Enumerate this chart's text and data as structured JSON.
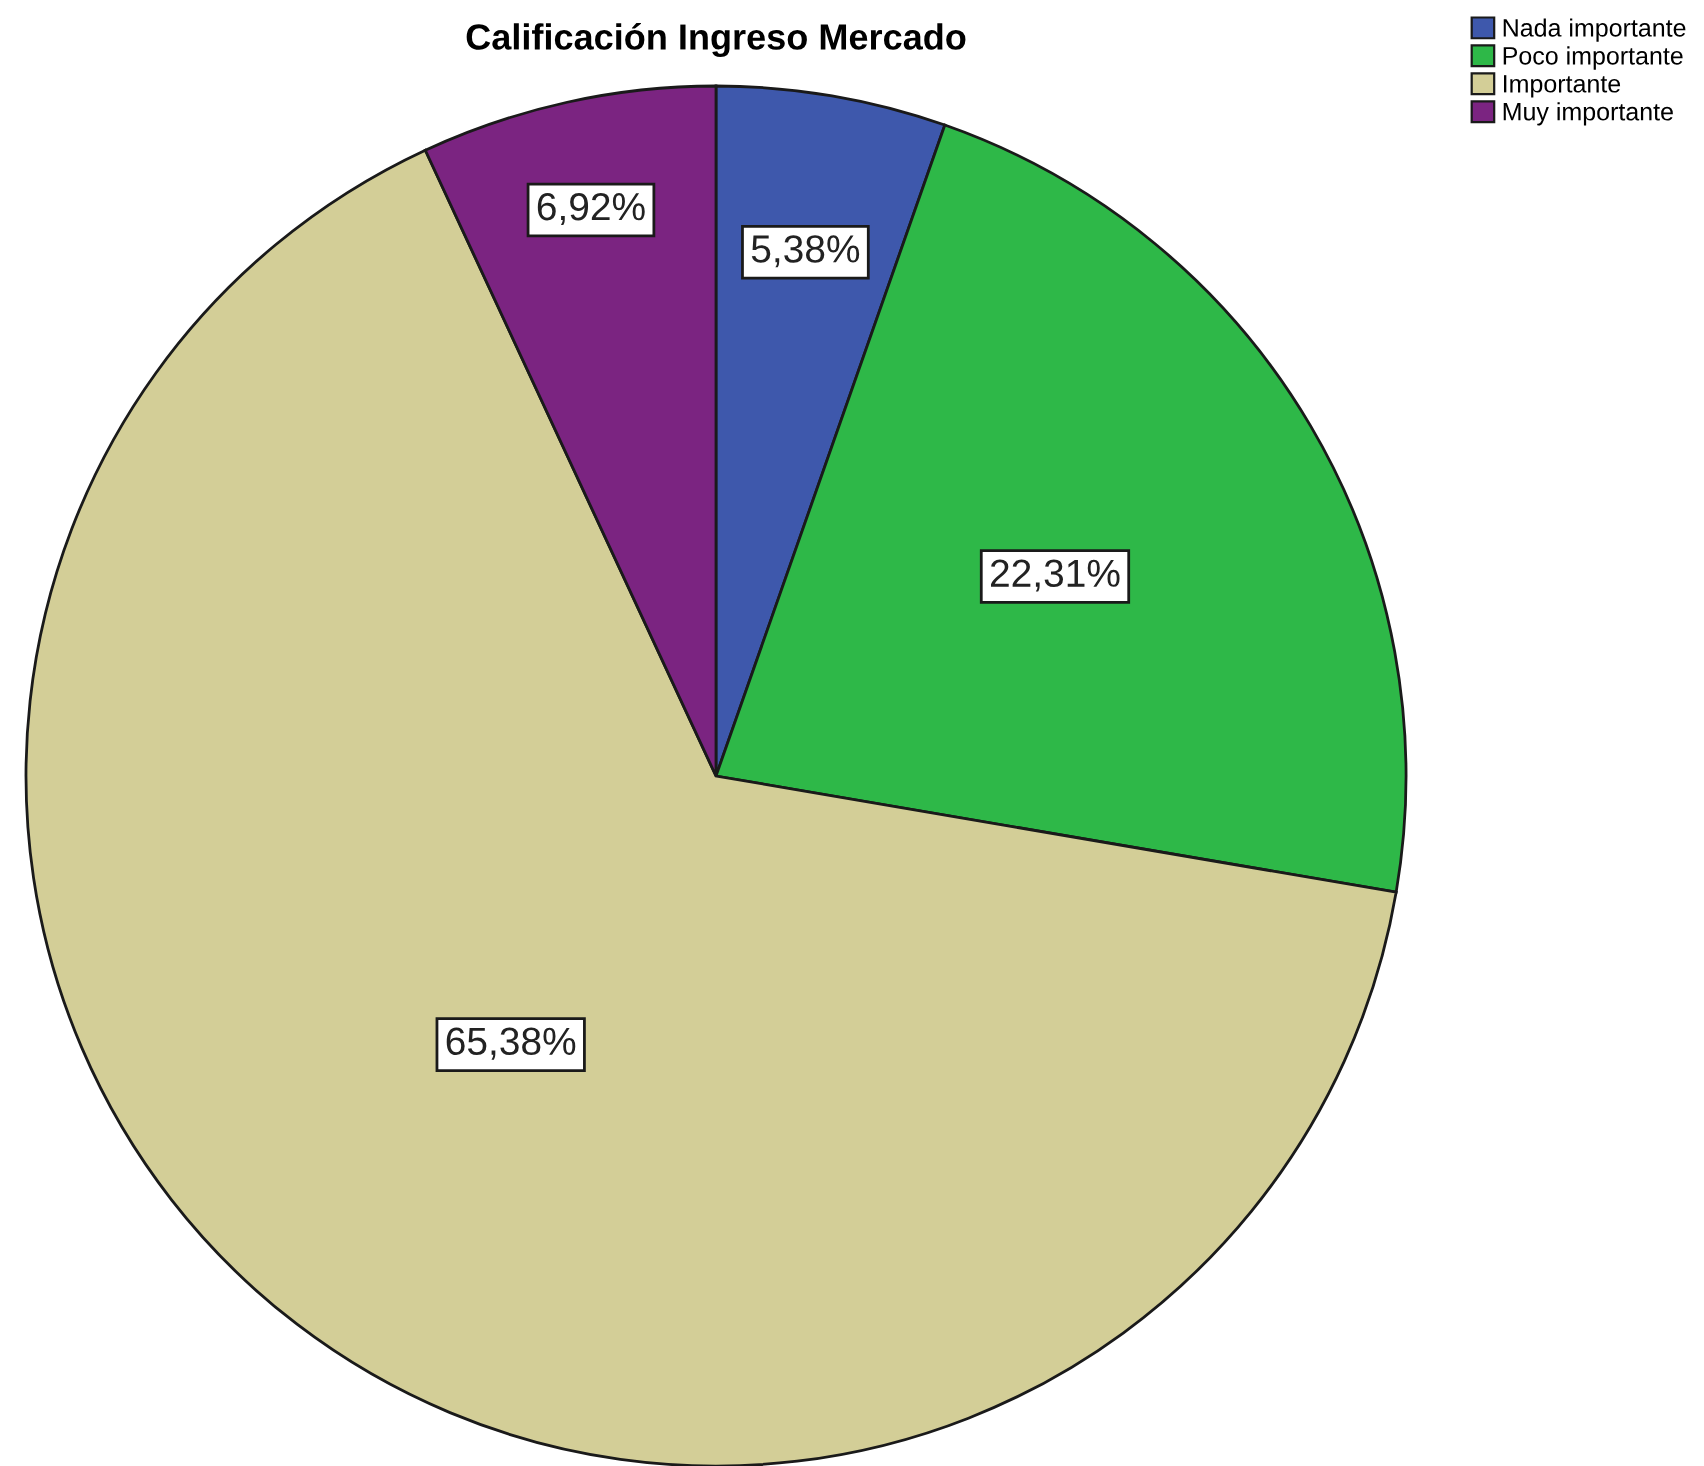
{
  "chart_data": {
    "type": "pie",
    "title": "Calificación Ingreso Mercado",
    "categories": [
      "Nada importante",
      "Poco importante",
      "Importante",
      "Muy importante"
    ],
    "values": [
      5.38,
      22.31,
      65.38,
      6.92
    ],
    "value_labels": [
      "5,38%",
      "22,31%",
      "65,38%",
      "6,92%"
    ],
    "colors": [
      "#3e58ac",
      "#2eb848",
      "#d3ce97",
      "#7b2481"
    ],
    "legend": "top right"
  }
}
